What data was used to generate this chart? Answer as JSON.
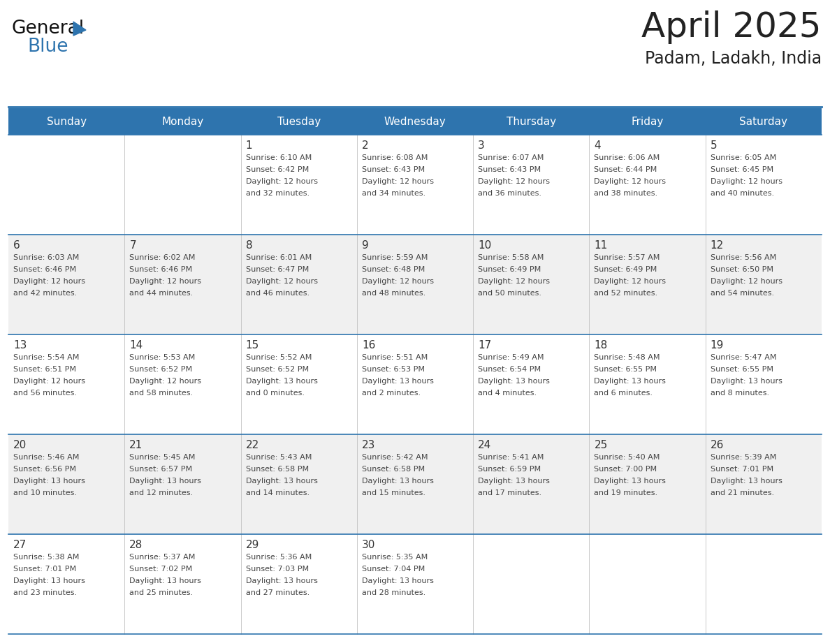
{
  "title": "April 2025",
  "subtitle": "Padam, Ladakh, India",
  "header_bg": "#2E74AE",
  "header_text_color": "#FFFFFF",
  "day_names": [
    "Sunday",
    "Monday",
    "Tuesday",
    "Wednesday",
    "Thursday",
    "Friday",
    "Saturday"
  ],
  "bg_color": "#FFFFFF",
  "cell_bg_even": "#F0F0F0",
  "cell_bg_odd": "#FFFFFF",
  "grid_line_color": "#2E74AE",
  "title_color": "#222222",
  "date_color": "#333333",
  "text_color": "#444444",
  "logo_triangle_color": "#2E74AE",
  "logo_general_color": "#111111",
  "weeks": [
    [
      {
        "day": null,
        "sunrise": null,
        "sunset": null,
        "daylight_h": null,
        "daylight_m": null
      },
      {
        "day": null,
        "sunrise": null,
        "sunset": null,
        "daylight_h": null,
        "daylight_m": null
      },
      {
        "day": 1,
        "sunrise": "6:10 AM",
        "sunset": "6:42 PM",
        "daylight_h": "12 hours",
        "daylight_m": "and 32 minutes."
      },
      {
        "day": 2,
        "sunrise": "6:08 AM",
        "sunset": "6:43 PM",
        "daylight_h": "12 hours",
        "daylight_m": "and 34 minutes."
      },
      {
        "day": 3,
        "sunrise": "6:07 AM",
        "sunset": "6:43 PM",
        "daylight_h": "12 hours",
        "daylight_m": "and 36 minutes."
      },
      {
        "day": 4,
        "sunrise": "6:06 AM",
        "sunset": "6:44 PM",
        "daylight_h": "12 hours",
        "daylight_m": "and 38 minutes."
      },
      {
        "day": 5,
        "sunrise": "6:05 AM",
        "sunset": "6:45 PM",
        "daylight_h": "12 hours",
        "daylight_m": "and 40 minutes."
      }
    ],
    [
      {
        "day": 6,
        "sunrise": "6:03 AM",
        "sunset": "6:46 PM",
        "daylight_h": "12 hours",
        "daylight_m": "and 42 minutes."
      },
      {
        "day": 7,
        "sunrise": "6:02 AM",
        "sunset": "6:46 PM",
        "daylight_h": "12 hours",
        "daylight_m": "and 44 minutes."
      },
      {
        "day": 8,
        "sunrise": "6:01 AM",
        "sunset": "6:47 PM",
        "daylight_h": "12 hours",
        "daylight_m": "and 46 minutes."
      },
      {
        "day": 9,
        "sunrise": "5:59 AM",
        "sunset": "6:48 PM",
        "daylight_h": "12 hours",
        "daylight_m": "and 48 minutes."
      },
      {
        "day": 10,
        "sunrise": "5:58 AM",
        "sunset": "6:49 PM",
        "daylight_h": "12 hours",
        "daylight_m": "and 50 minutes."
      },
      {
        "day": 11,
        "sunrise": "5:57 AM",
        "sunset": "6:49 PM",
        "daylight_h": "12 hours",
        "daylight_m": "and 52 minutes."
      },
      {
        "day": 12,
        "sunrise": "5:56 AM",
        "sunset": "6:50 PM",
        "daylight_h": "12 hours",
        "daylight_m": "and 54 minutes."
      }
    ],
    [
      {
        "day": 13,
        "sunrise": "5:54 AM",
        "sunset": "6:51 PM",
        "daylight_h": "12 hours",
        "daylight_m": "and 56 minutes."
      },
      {
        "day": 14,
        "sunrise": "5:53 AM",
        "sunset": "6:52 PM",
        "daylight_h": "12 hours",
        "daylight_m": "and 58 minutes."
      },
      {
        "day": 15,
        "sunrise": "5:52 AM",
        "sunset": "6:52 PM",
        "daylight_h": "13 hours",
        "daylight_m": "and 0 minutes."
      },
      {
        "day": 16,
        "sunrise": "5:51 AM",
        "sunset": "6:53 PM",
        "daylight_h": "13 hours",
        "daylight_m": "and 2 minutes."
      },
      {
        "day": 17,
        "sunrise": "5:49 AM",
        "sunset": "6:54 PM",
        "daylight_h": "13 hours",
        "daylight_m": "and 4 minutes."
      },
      {
        "day": 18,
        "sunrise": "5:48 AM",
        "sunset": "6:55 PM",
        "daylight_h": "13 hours",
        "daylight_m": "and 6 minutes."
      },
      {
        "day": 19,
        "sunrise": "5:47 AM",
        "sunset": "6:55 PM",
        "daylight_h": "13 hours",
        "daylight_m": "and 8 minutes."
      }
    ],
    [
      {
        "day": 20,
        "sunrise": "5:46 AM",
        "sunset": "6:56 PM",
        "daylight_h": "13 hours",
        "daylight_m": "and 10 minutes."
      },
      {
        "day": 21,
        "sunrise": "5:45 AM",
        "sunset": "6:57 PM",
        "daylight_h": "13 hours",
        "daylight_m": "and 12 minutes."
      },
      {
        "day": 22,
        "sunrise": "5:43 AM",
        "sunset": "6:58 PM",
        "daylight_h": "13 hours",
        "daylight_m": "and 14 minutes."
      },
      {
        "day": 23,
        "sunrise": "5:42 AM",
        "sunset": "6:58 PM",
        "daylight_h": "13 hours",
        "daylight_m": "and 15 minutes."
      },
      {
        "day": 24,
        "sunrise": "5:41 AM",
        "sunset": "6:59 PM",
        "daylight_h": "13 hours",
        "daylight_m": "and 17 minutes."
      },
      {
        "day": 25,
        "sunrise": "5:40 AM",
        "sunset": "7:00 PM",
        "daylight_h": "13 hours",
        "daylight_m": "and 19 minutes."
      },
      {
        "day": 26,
        "sunrise": "5:39 AM",
        "sunset": "7:01 PM",
        "daylight_h": "13 hours",
        "daylight_m": "and 21 minutes."
      }
    ],
    [
      {
        "day": 27,
        "sunrise": "5:38 AM",
        "sunset": "7:01 PM",
        "daylight_h": "13 hours",
        "daylight_m": "and 23 minutes."
      },
      {
        "day": 28,
        "sunrise": "5:37 AM",
        "sunset": "7:02 PM",
        "daylight_h": "13 hours",
        "daylight_m": "and 25 minutes."
      },
      {
        "day": 29,
        "sunrise": "5:36 AM",
        "sunset": "7:03 PM",
        "daylight_h": "13 hours",
        "daylight_m": "and 27 minutes."
      },
      {
        "day": 30,
        "sunrise": "5:35 AM",
        "sunset": "7:04 PM",
        "daylight_h": "13 hours",
        "daylight_m": "and 28 minutes."
      },
      {
        "day": null,
        "sunrise": null,
        "sunset": null,
        "daylight_h": null,
        "daylight_m": null
      },
      {
        "day": null,
        "sunrise": null,
        "sunset": null,
        "daylight_h": null,
        "daylight_m": null
      },
      {
        "day": null,
        "sunrise": null,
        "sunset": null,
        "daylight_h": null,
        "daylight_m": null
      }
    ]
  ]
}
